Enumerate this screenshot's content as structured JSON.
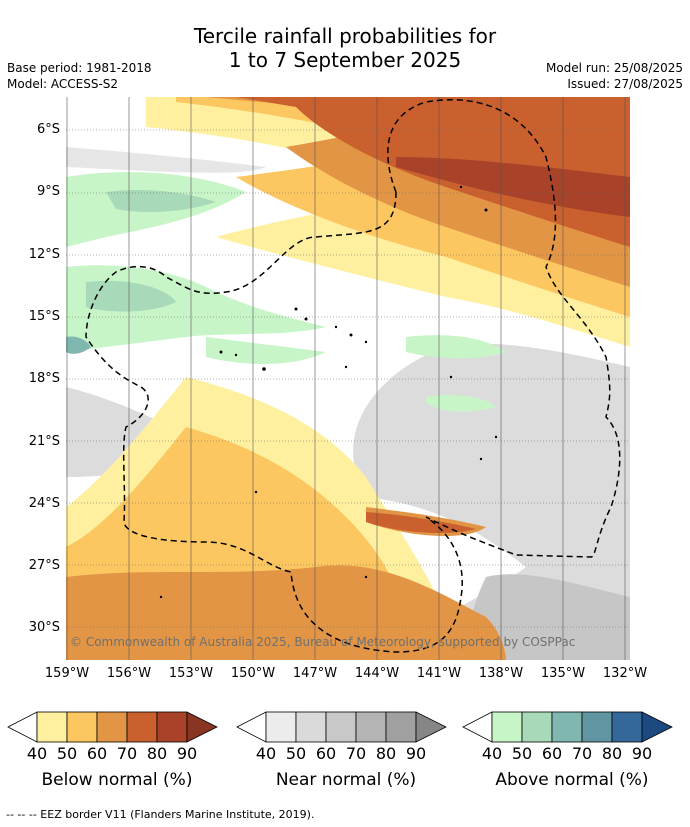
{
  "title_line1": "Tercile rainfall probabilities for",
  "title_line2": "1 to 7 September 2025",
  "base_period": "Base period: 1981-2018",
  "model": "Model: ACCESS-S2",
  "model_run": "Model run: 25/08/2025",
  "issued": "Issued: 27/08/2025",
  "copyright": "© Commonwealth of Australia 2025, Bureau of Meteorology, supported by COSPPac",
  "lat_labels": [
    "6°S",
    "9°S",
    "12°S",
    "15°S",
    "18°S",
    "21°S",
    "24°S",
    "27°S",
    "30°S"
  ],
  "lon_labels": [
    "159°W",
    "156°W",
    "153°W",
    "150°W",
    "147°W",
    "144°W",
    "141°W",
    "138°W",
    "135°W",
    "132°W"
  ],
  "legends": [
    {
      "caption": "Below normal (%)",
      "ticks": [
        "40",
        "50",
        "60",
        "70",
        "80",
        "90"
      ],
      "colors": [
        "#fff0a0",
        "#fcc660",
        "#e29545",
        "#c9602e",
        "#a8432a",
        "#8a3524"
      ]
    },
    {
      "caption": "Near normal (%)",
      "ticks": [
        "40",
        "50",
        "60",
        "70",
        "80",
        "90"
      ],
      "colors": [
        "#ececec",
        "#dadada",
        "#c8c8c8",
        "#b4b4b4",
        "#a0a0a0",
        "#868686"
      ]
    },
    {
      "caption": "Above normal (%)",
      "ticks": [
        "40",
        "50",
        "60",
        "70",
        "80",
        "90"
      ],
      "colors": [
        "#c8f5c8",
        "#a8d9b8",
        "#80b8b0",
        "#5f96a2",
        "#35689a",
        "#1c4a80"
      ]
    }
  ],
  "footer": "-- -- -- EEZ border V11 (Flanders Marine Institute, 2019)."
}
